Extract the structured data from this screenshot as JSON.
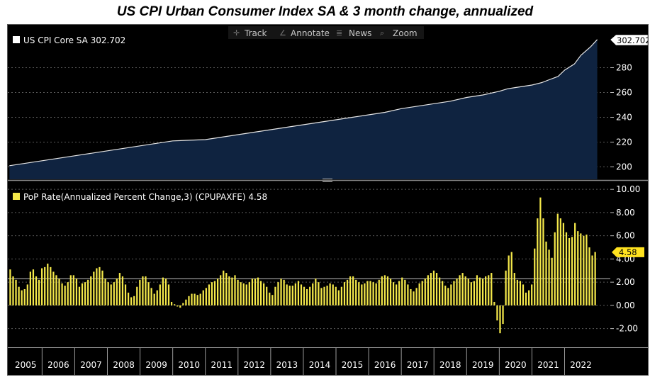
{
  "chart_data": [
    {
      "type": "area",
      "title": "US CPI Urban Consumer Index SA & 3 month change, annualized",
      "series": [
        {
          "name": "US CPI Core SA",
          "last_value": "302.702",
          "legend": "US CPI Core SA 302.702",
          "x": [
            2005.0,
            2005.5,
            2006.0,
            2006.5,
            2007.0,
            2007.5,
            2008.0,
            2008.5,
            2009.0,
            2009.5,
            2010.0,
            2010.5,
            2011.0,
            2011.5,
            2012.0,
            2012.5,
            2013.0,
            2013.5,
            2014.0,
            2014.5,
            2015.0,
            2015.5,
            2016.0,
            2016.5,
            2017.0,
            2017.5,
            2018.0,
            2018.5,
            2019.0,
            2019.5,
            2020.0,
            2020.25,
            2020.5,
            2021.0,
            2021.3,
            2021.5,
            2021.8,
            2022.0,
            2022.3,
            2022.5,
            2022.8,
            2023.0
          ],
          "values": [
            201,
            203,
            205,
            207,
            209,
            211,
            213,
            215,
            217,
            219,
            221,
            221.5,
            222,
            224,
            226,
            228,
            230,
            232,
            234,
            236,
            238,
            240,
            242,
            244,
            247,
            249,
            251,
            253,
            256,
            258,
            261,
            263,
            264,
            266,
            268,
            270,
            273,
            278,
            283,
            290,
            297,
            302.7
          ]
        }
      ],
      "y_ticks": [
        "200",
        "220",
        "240",
        "260",
        "280"
      ],
      "ylim": [
        190,
        310
      ]
    },
    {
      "type": "bar",
      "series": [
        {
          "name": "PoP Rate(Annualized Percent Change,3) (CPUPAXFE)",
          "last_value": "4.58",
          "legend": "PoP Rate(Annualized Percent Change,3) (CPUPAXFE) 4.58",
          "values": [
            3.1,
            2.5,
            2.2,
            1.6,
            1.3,
            1.4,
            1.8,
            2.9,
            3.1,
            2.5,
            2.2,
            3.2,
            3.3,
            3.6,
            3.3,
            2.9,
            2.6,
            2.3,
            1.9,
            1.7,
            2.0,
            2.6,
            2.6,
            2.3,
            1.6,
            1.9,
            2.0,
            2.2,
            2.5,
            2.9,
            3.2,
            3.3,
            3.0,
            2.3,
            2.0,
            1.8,
            2.0,
            2.3,
            2.8,
            2.5,
            1.8,
            1.1,
            0.7,
            0.8,
            1.6,
            2.2,
            2.5,
            2.5,
            2.0,
            1.5,
            1.0,
            1.3,
            1.8,
            2.4,
            2.3,
            1.8,
            0.3,
            0.1,
            -0.1,
            -0.2,
            0.2,
            0.5,
            0.8,
            1.0,
            1.0,
            0.9,
            1.0,
            1.3,
            1.5,
            1.8,
            2.0,
            2.1,
            2.3,
            2.6,
            3.0,
            2.8,
            2.5,
            2.4,
            2.6,
            2.2,
            2.0,
            1.9,
            1.8,
            2.0,
            2.3,
            2.3,
            2.4,
            2.1,
            1.9,
            1.6,
            1.1,
            0.9,
            1.6,
            2.0,
            2.3,
            2.2,
            1.8,
            1.7,
            1.7,
            1.9,
            2.1,
            1.8,
            1.6,
            1.4,
            1.6,
            1.9,
            2.3,
            2.0,
            1.5,
            1.6,
            1.7,
            1.9,
            1.8,
            1.6,
            1.3,
            1.6,
            2.0,
            2.2,
            2.5,
            2.5,
            2.2,
            2.0,
            1.8,
            1.9,
            2.1,
            2.1,
            2.0,
            1.9,
            2.2,
            2.5,
            2.6,
            2.5,
            2.3,
            2.0,
            1.8,
            2.1,
            2.4,
            2.2,
            1.8,
            1.4,
            1.2,
            1.5,
            1.9,
            2.1,
            2.3,
            2.6,
            2.8,
            3.0,
            2.8,
            2.4,
            2.1,
            1.7,
            1.5,
            1.8,
            2.1,
            2.3,
            2.6,
            2.8,
            2.5,
            2.3,
            2.0,
            2.1,
            2.6,
            2.4,
            2.3,
            2.5,
            2.6,
            2.8,
            0.3,
            -1.3,
            -2.4,
            -1.6,
            3.0,
            4.3,
            4.6,
            2.8,
            2.2,
            2.1,
            1.8,
            1.1,
            1.3,
            1.8,
            4.9,
            7.5,
            9.3,
            7.5,
            5.5,
            4.8,
            4.1,
            6.3,
            7.9,
            7.5,
            7.1,
            6.3,
            5.8,
            5.9,
            7.1,
            6.4,
            6.2,
            6.0,
            6.1,
            5.0,
            4.3,
            4.6
          ],
          "zero_value": "0.00",
          "ref_line": 2.3
        }
      ],
      "y_ticks": [
        "-2.00",
        "0.00",
        "2.00",
        "4.00",
        "6.00",
        "8.00",
        "10.00"
      ],
      "ylim": [
        -3,
        10.5
      ]
    }
  ],
  "x_axis": {
    "years": [
      "2005",
      "2006",
      "2007",
      "2008",
      "2009",
      "2010",
      "2011",
      "2012",
      "2013",
      "2014",
      "2015",
      "2016",
      "2017",
      "2018",
      "2019",
      "2020",
      "2021",
      "2022"
    ],
    "range": [
      2004.95,
      2023.4
    ]
  },
  "toolbar": {
    "track": "Track",
    "annotate": "Annotate",
    "news": "News",
    "zoom": "Zoom"
  },
  "colors": {
    "area_fill": "#0f2340",
    "line": "#e6e6e6",
    "bars": "#f4e84a",
    "marker": "#ffe21f",
    "background": "#000000"
  }
}
